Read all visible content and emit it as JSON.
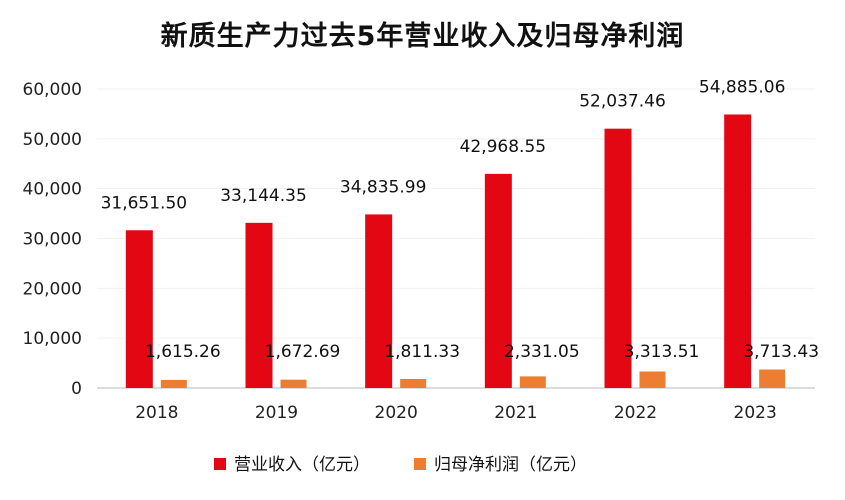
{
  "chart_data": {
    "type": "bar",
    "title": "新质生产力过去5年营业收入及归母净利润",
    "categories": [
      "2018",
      "2019",
      "2020",
      "2021",
      "2022",
      "2023"
    ],
    "series": [
      {
        "name": "营业收入（亿元）",
        "color": "#e30613",
        "values": [
          31651.5,
          33144.35,
          34835.99,
          42968.55,
          52037.46,
          54885.06
        ],
        "labels": [
          "31,651.50",
          "33,144.35",
          "34,835.99",
          "42,968.55",
          "52,037.46",
          "54,885.06"
        ]
      },
      {
        "name": "归母净利润（亿元）",
        "color": "#ed7d31",
        "values": [
          1615.26,
          1672.69,
          1811.33,
          2331.05,
          3313.51,
          3713.43
        ],
        "labels": [
          "1,615.26",
          "1,672.69",
          "1,811.33",
          "2,331.05",
          "3,313.51",
          "3,713.43"
        ]
      }
    ],
    "yticks": [
      "0",
      "10,000",
      "20,000",
      "30,000",
      "40,000",
      "50,000",
      "60,000"
    ],
    "ylim": [
      0,
      60000
    ],
    "xlabel": "",
    "ylabel": "",
    "grid": true,
    "legend": "bottom"
  }
}
